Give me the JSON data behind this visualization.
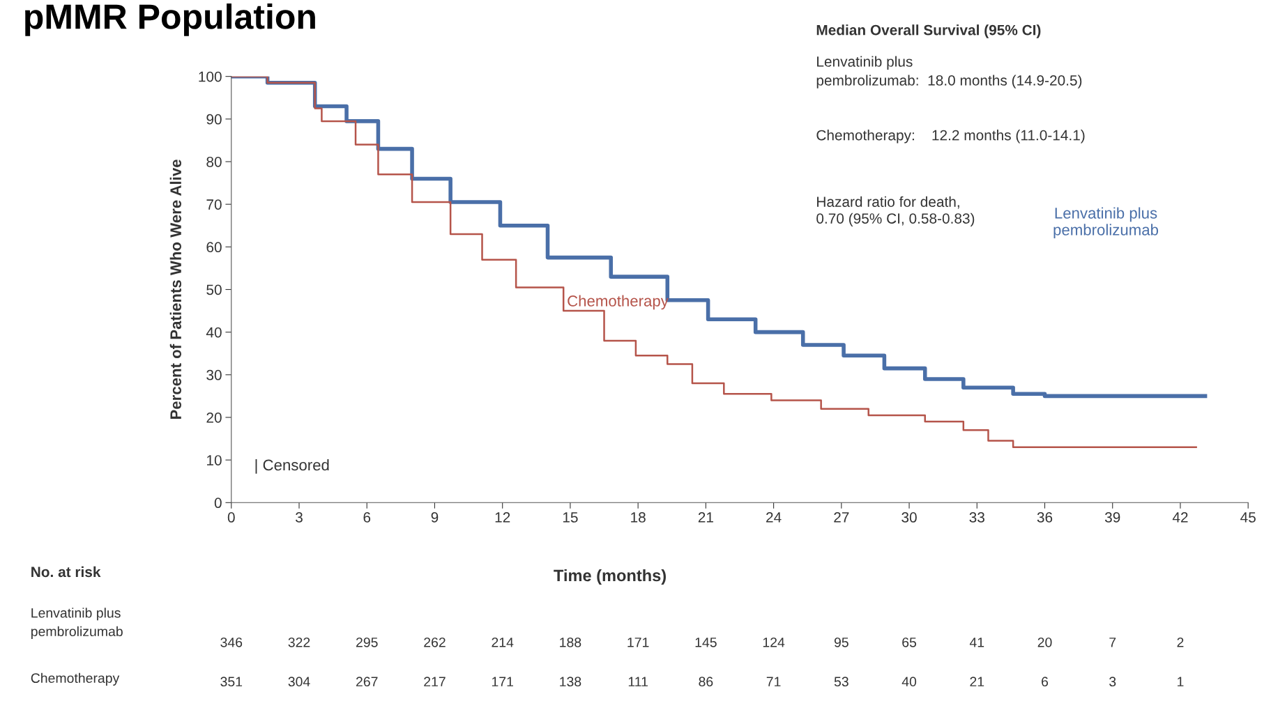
{
  "chart_data": {
    "type": "step",
    "title": "pMMR Population",
    "xlabel": "Time (months)",
    "ylabel": "Percent of Patients Who Were Alive",
    "xlim": [
      0,
      45
    ],
    "xticks": [
      0,
      3,
      6,
      9,
      12,
      15,
      18,
      21,
      24,
      27,
      30,
      33,
      36,
      39,
      42,
      45
    ],
    "ylim": [
      0,
      100
    ],
    "yticks": [
      0,
      10,
      20,
      30,
      40,
      50,
      60,
      70,
      80,
      90,
      100
    ],
    "grid": false,
    "legend": false,
    "line_style": "solid",
    "series": [
      {
        "name": "Lenvatinib plus\npembrolizumab",
        "color": "#4a6fa8",
        "x": [
          0,
          1.6,
          3.7,
          5.1,
          6.5,
          8,
          9.7,
          11.9,
          14,
          16.8,
          19.3,
          21.1,
          23.2,
          25.3,
          27.1,
          28.9,
          30.7,
          32.4,
          34.6,
          36,
          43.1
        ],
        "values": [
          100,
          98.5,
          93,
          89.5,
          83,
          76,
          70.5,
          65,
          57.5,
          53,
          47.5,
          43,
          40,
          37,
          34.5,
          31.5,
          29,
          27,
          25.5,
          25,
          25
        ]
      },
      {
        "name": "Chemotherapy",
        "color": "#b5544a",
        "x": [
          0,
          1.6,
          3.7,
          4,
          5.5,
          6.5,
          8,
          9.7,
          11.1,
          12.6,
          14.7,
          16.5,
          17.9,
          19.3,
          20.4,
          21.8,
          23.9,
          26.1,
          28.2,
          30.7,
          32.4,
          33.5,
          34.6,
          42.7
        ],
        "values": [
          100,
          98.5,
          92.5,
          89.5,
          84,
          77,
          70.5,
          63,
          57,
          50.5,
          45,
          38,
          34.5,
          32.5,
          28,
          25.5,
          24,
          22,
          20.5,
          19,
          17,
          14.5,
          13,
          13
        ]
      }
    ],
    "annotations": [
      "Median Overall Survival (95% CI)",
      "Lenvatinib plus\npembrolizumab:  18.0 months (14.9-20.5)",
      "Chemotherapy:    12.2 months (11.0-14.1)",
      "Hazard ratio for death,\n0.70 (95% CI, 0.58-0.83)",
      "| Censored",
      "No. at risk",
      "Lenvatinib plus\npembrolizumab",
      "346 322 295 262 214 188 171 145 124 95 65 41 20 7 2",
      "Chemotherapy",
      "351 304 267 217 171 138 111 86 71 53 40 21 6 3 1"
    ]
  }
}
